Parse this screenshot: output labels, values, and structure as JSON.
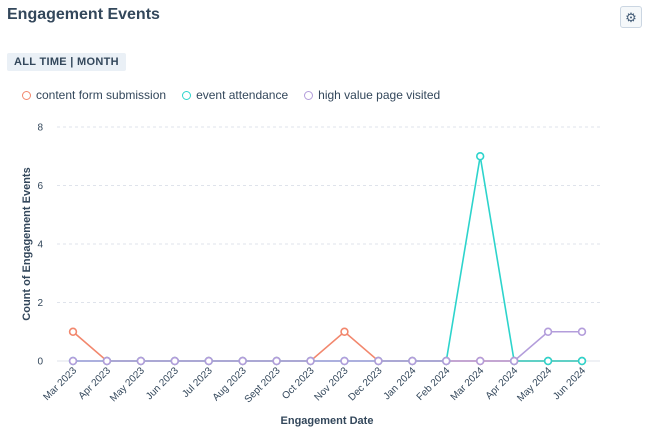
{
  "header": {
    "title": "Engagement Events",
    "settings_icon": "gear-icon"
  },
  "filter": {
    "label": "ALL TIME | MONTH"
  },
  "chart_data": {
    "type": "line",
    "title": "Engagement Events",
    "xlabel": "Engagement Date",
    "ylabel": "Count of Engagement Events",
    "ylim": [
      0,
      8
    ],
    "yticks": [
      "0",
      "2",
      "4",
      "6",
      "8"
    ],
    "grid": true,
    "legend_position": "top-left",
    "categories": [
      "Mar 2023",
      "Apr 2023",
      "May 2023",
      "Jun 2023",
      "Jul 2023",
      "Aug 2023",
      "Sept 2023",
      "Oct 2023",
      "Nov 2023",
      "Dec 2023",
      "Jan 2024",
      "Feb 2024",
      "Mar 2024",
      "Apr 2024",
      "May 2024",
      "Jun 2024"
    ],
    "series": [
      {
        "name": "content form submission",
        "color": "#f2876d",
        "values": [
          1,
          0,
          0,
          0,
          0,
          0,
          0,
          0,
          1,
          0,
          0,
          0,
          0,
          0,
          0,
          0
        ]
      },
      {
        "name": "event attendance",
        "color": "#2dd4cc",
        "values": [
          0,
          0,
          0,
          0,
          0,
          0,
          0,
          0,
          0,
          0,
          0,
          0,
          7,
          0,
          0,
          0
        ]
      },
      {
        "name": "high value page visited",
        "color": "#b39ddb",
        "values": [
          0,
          0,
          0,
          0,
          0,
          0,
          0,
          0,
          0,
          0,
          0,
          0,
          0,
          0,
          1,
          1
        ]
      }
    ]
  }
}
